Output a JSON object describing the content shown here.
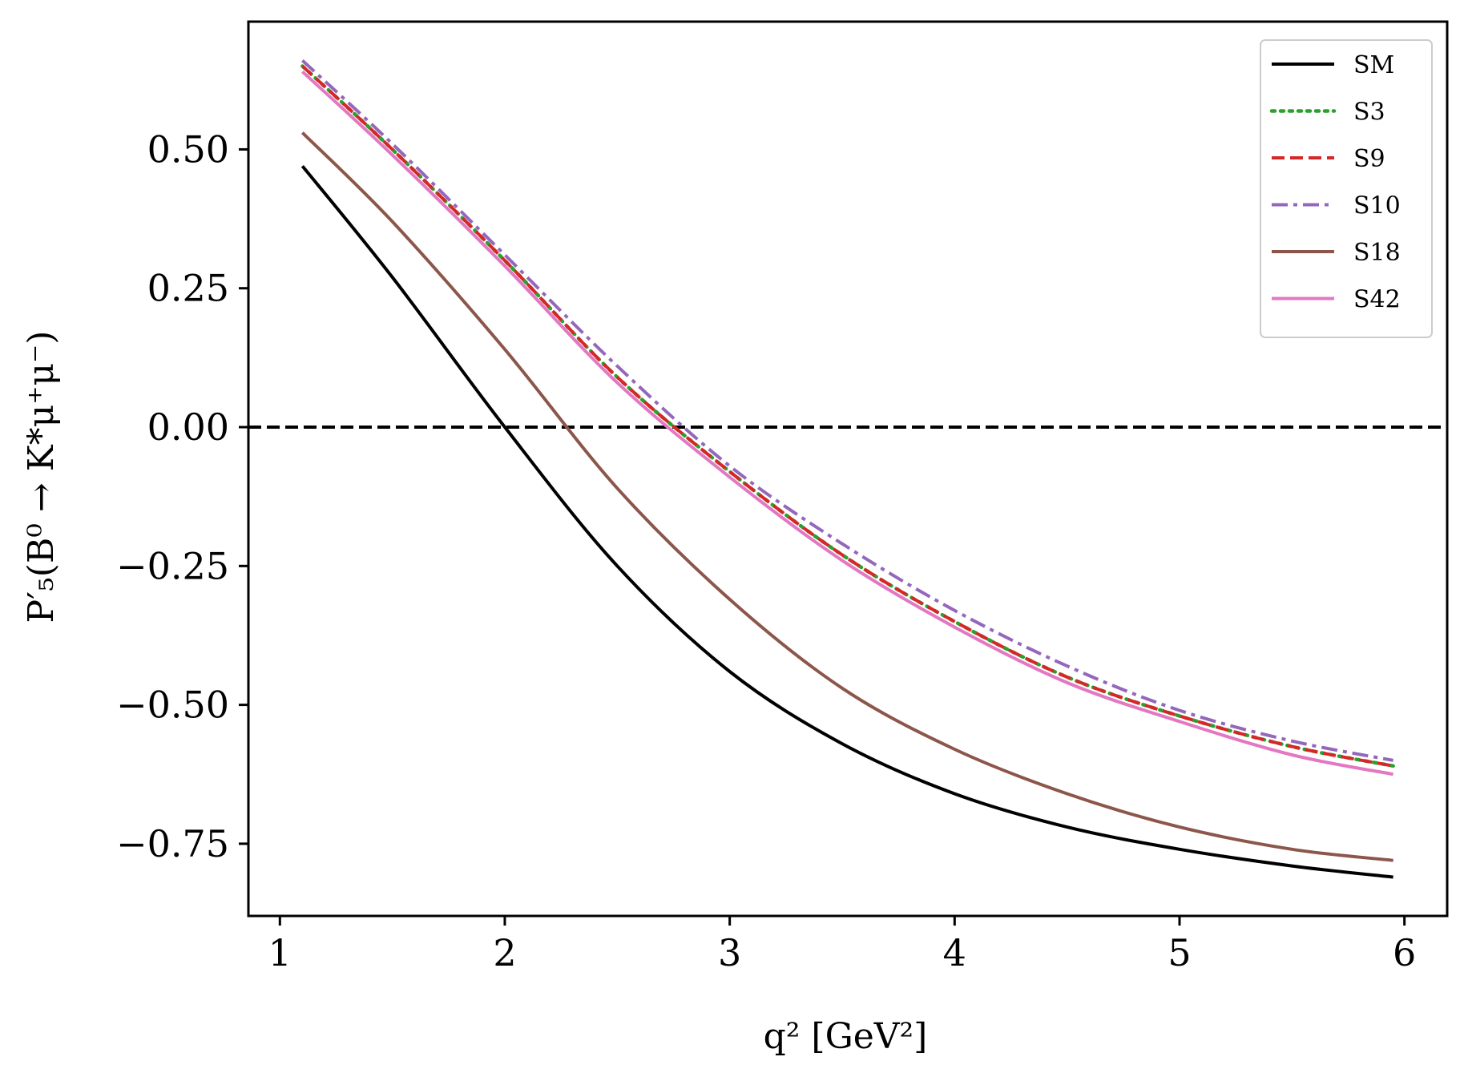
{
  "chart_data": {
    "type": "line",
    "title": "",
    "xlabel": "q² [GeV²]",
    "ylabel": "P′₅(B⁰ → K*μ⁺μ⁻)",
    "xlim": [
      0.86,
      6.19
    ],
    "ylim": [
      -0.88,
      0.73
    ],
    "xticks": [
      1,
      2,
      3,
      4,
      5,
      6
    ],
    "xtick_labels": [
      "1",
      "2",
      "3",
      "4",
      "5",
      "6"
    ],
    "yticks": [
      0.5,
      0.25,
      0.0,
      -0.25,
      -0.5,
      -0.75
    ],
    "ytick_labels": [
      "0.50",
      "0.25",
      "0.00",
      "−0.25",
      "−0.50",
      "−0.75"
    ],
    "grid": false,
    "legend_position": "top-right",
    "x": [
      1.1,
      1.5,
      2.0,
      2.5,
      3.0,
      3.5,
      4.0,
      4.5,
      5.0,
      5.5,
      5.95
    ],
    "series": [
      {
        "name": "SM",
        "color": "#000000",
        "style": "solid",
        "values": [
          0.47,
          0.27,
          0.0,
          -0.25,
          -0.44,
          -0.57,
          -0.66,
          -0.72,
          -0.76,
          -0.79,
          -0.81
        ]
      },
      {
        "name": "S3",
        "color": "#2ca02c",
        "style": "dotted",
        "values": [
          0.65,
          0.5,
          0.3,
          0.09,
          -0.08,
          -0.23,
          -0.35,
          -0.45,
          -0.52,
          -0.575,
          -0.61
        ]
      },
      {
        "name": "S9",
        "color": "#d62728",
        "style": "dashed",
        "values": [
          0.65,
          0.5,
          0.3,
          0.09,
          -0.08,
          -0.23,
          -0.35,
          -0.45,
          -0.52,
          -0.575,
          -0.61
        ]
      },
      {
        "name": "S10",
        "color": "#9467bd",
        "style": "dashdot",
        "values": [
          0.66,
          0.51,
          0.31,
          0.11,
          -0.07,
          -0.21,
          -0.33,
          -0.43,
          -0.51,
          -0.565,
          -0.6
        ]
      },
      {
        "name": "S18",
        "color": "#8c564b",
        "style": "solid",
        "values": [
          0.53,
          0.37,
          0.14,
          -0.11,
          -0.31,
          -0.47,
          -0.58,
          -0.66,
          -0.72,
          -0.76,
          -0.78
        ]
      },
      {
        "name": "S42",
        "color": "#e377c2",
        "style": "solid",
        "values": [
          0.64,
          0.49,
          0.29,
          0.08,
          -0.09,
          -0.24,
          -0.36,
          -0.46,
          -0.53,
          -0.59,
          -0.625
        ]
      }
    ],
    "reference_line": {
      "y": 0.0,
      "color": "#000000",
      "style": "dashed"
    }
  }
}
